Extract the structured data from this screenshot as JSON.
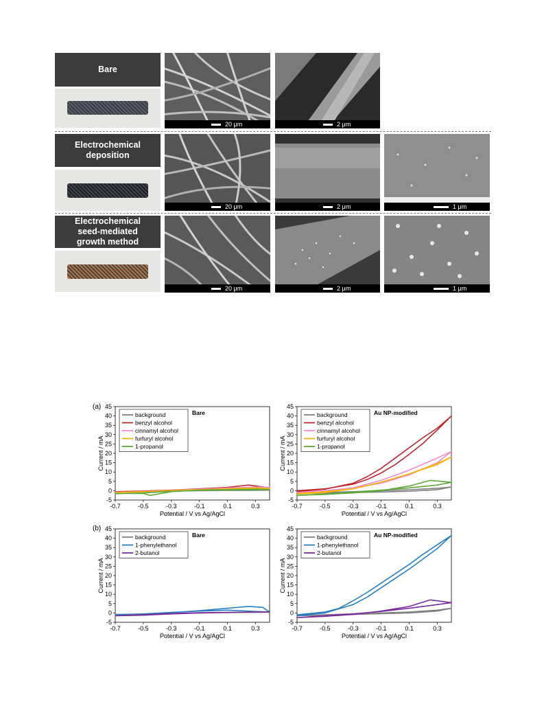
{
  "rows": [
    {
      "label": "Bare",
      "scales": [
        "20 μm",
        "2 μm"
      ]
    },
    {
      "label": "Electrochemical\ndeposition",
      "scales": [
        "20 μm",
        "2 μm",
        "1 μm"
      ]
    },
    {
      "label": "Electrochemical\nseed-mediated\ngrowth method",
      "scales": [
        "20 μm",
        "2 μm",
        "1 μm"
      ]
    }
  ],
  "panel_tags": {
    "a": "(a)",
    "b": "(b)"
  },
  "chart_data": [
    {
      "type": "line",
      "id": "a-bare",
      "title": "Bare",
      "xlabel": "Potential / V vs Ag/AgCl",
      "ylabel": "Current / mA",
      "xlim": [
        -0.7,
        0.4
      ],
      "ylim": [
        -5,
        45
      ],
      "xticks": [
        -0.7,
        -0.5,
        -0.3,
        -0.1,
        0.1,
        0.3
      ],
      "yticks": [
        -5,
        0,
        5,
        10,
        15,
        20,
        25,
        30,
        35,
        40,
        45
      ],
      "legend": "top-left",
      "series": [
        {
          "name": "background",
          "color": "#808080",
          "x": [
            -0.7,
            -0.5,
            -0.3,
            -0.1,
            0.1,
            0.3,
            0.4,
            0.3,
            0.1,
            -0.1,
            -0.3,
            -0.5,
            -0.7
          ],
          "y": [
            -0.5,
            -0.4,
            -0.2,
            0.0,
            0.1,
            0.2,
            0.3,
            0.2,
            0.1,
            0.0,
            -0.2,
            -0.4,
            -0.5
          ]
        },
        {
          "name": "benzyl alcohol",
          "color": "#c0272d",
          "x": [
            -0.7,
            -0.5,
            -0.3,
            -0.1,
            0.1,
            0.25,
            0.4,
            0.3,
            0.1,
            -0.1,
            -0.3,
            -0.5,
            -0.7
          ],
          "y": [
            -0.5,
            -0.2,
            0.3,
            1.0,
            1.8,
            3.0,
            1.5,
            1.2,
            0.8,
            0.5,
            0.2,
            -0.3,
            -0.6
          ]
        },
        {
          "name": "cinnamyl alcohol",
          "color": "#f28ad0",
          "x": [
            -0.7,
            -0.5,
            -0.3,
            -0.1,
            0.1,
            0.3,
            0.4,
            0.3,
            0.1,
            -0.1,
            -0.3,
            -0.5,
            -0.7
          ],
          "y": [
            -0.8,
            -0.5,
            0.2,
            0.8,
            1.4,
            2.0,
            1.8,
            1.5,
            1.0,
            0.6,
            0.2,
            -0.4,
            -0.9
          ]
        },
        {
          "name": "furfuryl alcohol",
          "color": "#f5b400",
          "x": [
            -0.7,
            -0.5,
            -0.3,
            -0.1,
            0.1,
            0.3,
            0.4,
            0.3,
            0.1,
            -0.1,
            -0.3,
            -0.5,
            -0.7
          ],
          "y": [
            -1.0,
            -0.6,
            0.1,
            0.6,
            1.0,
            1.5,
            1.2,
            1.0,
            0.7,
            0.4,
            0.0,
            -0.5,
            -1.0
          ]
        },
        {
          "name": "1-propanol",
          "color": "#5fa83b",
          "x": [
            -0.7,
            -0.5,
            -0.45,
            -0.3,
            -0.1,
            0.1,
            0.3,
            0.4,
            0.3,
            0.1,
            -0.1,
            -0.3,
            -0.5,
            -0.7
          ],
          "y": [
            -1.5,
            -1.5,
            -2.5,
            -0.5,
            0.3,
            0.6,
            0.8,
            0.6,
            0.5,
            0.3,
            0.1,
            -0.3,
            -1.2,
            -1.6
          ]
        }
      ]
    },
    {
      "type": "line",
      "id": "a-au",
      "title": "Au NP-modified",
      "xlabel": "Potential / V vs Ag/AgCl",
      "ylabel": "Current / mA",
      "xlim": [
        -0.7,
        0.4
      ],
      "ylim": [
        -5,
        45
      ],
      "xticks": [
        -0.7,
        -0.5,
        -0.3,
        -0.1,
        0.1,
        0.3
      ],
      "yticks": [
        -5,
        0,
        5,
        10,
        15,
        20,
        25,
        30,
        35,
        40,
        45
      ],
      "legend": "top-left",
      "series": [
        {
          "name": "background",
          "color": "#808080",
          "x": [
            -0.7,
            -0.5,
            -0.3,
            -0.1,
            0.1,
            0.3,
            0.4,
            0.3,
            0.1,
            -0.1,
            -0.3,
            -0.5,
            -0.7
          ],
          "y": [
            -1.5,
            -1.3,
            -1.0,
            -0.7,
            -0.3,
            0.5,
            2.0,
            1.3,
            0.5,
            0.0,
            -0.5,
            -1.0,
            -1.5
          ]
        },
        {
          "name": "benzyl alcohol",
          "color": "#c0272d",
          "x": [
            -0.7,
            -0.5,
            -0.3,
            -0.2,
            -0.1,
            0.0,
            0.1,
            0.2,
            0.3,
            0.4,
            0.3,
            0.2,
            0.1,
            0.0,
            -0.1,
            -0.2,
            -0.3,
            -0.5,
            -0.7
          ],
          "y": [
            0.0,
            1.0,
            3.5,
            6.0,
            9.5,
            14.0,
            19.5,
            25.5,
            32.5,
            40.0,
            33.5,
            28.5,
            23.0,
            17.5,
            12.0,
            7.5,
            4.0,
            0.8,
            -0.5
          ]
        },
        {
          "name": "cinnamyl alcohol",
          "color": "#f28ad0",
          "x": [
            -0.7,
            -0.5,
            -0.3,
            -0.1,
            0.1,
            0.3,
            0.4,
            0.3,
            0.1,
            -0.1,
            -0.3,
            -0.5,
            -0.7
          ],
          "y": [
            -1.0,
            0.0,
            1.5,
            4.0,
            8.5,
            15.0,
            21.0,
            17.5,
            11.0,
            5.5,
            1.5,
            -0.5,
            -1.2
          ]
        },
        {
          "name": "furfuryl alcohol",
          "color": "#f5b400",
          "x": [
            -0.7,
            -0.5,
            -0.3,
            -0.1,
            0.1,
            0.3,
            0.4,
            0.3,
            0.1,
            -0.1,
            -0.3,
            -0.5,
            -0.7
          ],
          "y": [
            -1.5,
            -0.5,
            1.0,
            4.5,
            9.0,
            14.5,
            18.0,
            14.0,
            9.0,
            4.5,
            1.0,
            -1.0,
            -1.8
          ]
        },
        {
          "name": "1-propanol",
          "color": "#5fa83b",
          "x": [
            -0.7,
            -0.5,
            -0.3,
            -0.1,
            0.1,
            0.25,
            0.4,
            0.3,
            0.1,
            -0.1,
            -0.3,
            -0.5,
            -0.7
          ],
          "y": [
            -2.5,
            -2.0,
            -1.2,
            0.0,
            2.5,
            5.5,
            4.5,
            3.0,
            1.5,
            0.3,
            -0.8,
            -1.8,
            -2.5
          ]
        }
      ]
    },
    {
      "type": "line",
      "id": "b-bare",
      "title": "Bare",
      "xlabel": "Potential / V vs Ag/AgCl",
      "ylabel": "Current / mA",
      "xlim": [
        -0.7,
        0.4
      ],
      "ylim": [
        -5,
        45
      ],
      "xticks": [
        -0.7,
        -0.5,
        -0.3,
        -0.1,
        0.1,
        0.3
      ],
      "yticks": [
        -5,
        0,
        5,
        10,
        15,
        20,
        25,
        30,
        35,
        40,
        45
      ],
      "legend": "top-left",
      "series": [
        {
          "name": "background",
          "color": "#808080",
          "x": [
            -0.7,
            -0.5,
            -0.3,
            -0.1,
            0.1,
            0.3,
            0.4,
            0.3,
            0.1,
            -0.1,
            -0.3,
            -0.5,
            -0.7
          ],
          "y": [
            -0.8,
            -0.6,
            -0.3,
            0.0,
            0.2,
            0.3,
            0.4,
            0.3,
            0.2,
            0.0,
            -0.3,
            -0.6,
            -0.8
          ]
        },
        {
          "name": "1-phenylethanol",
          "color": "#2a7fc1",
          "x": [
            -0.7,
            -0.5,
            -0.3,
            -0.1,
            0.1,
            0.25,
            0.35,
            0.4,
            0.3,
            0.1,
            -0.1,
            -0.3,
            -0.5,
            -0.7
          ],
          "y": [
            -1.0,
            -0.6,
            0.2,
            1.2,
            2.5,
            3.5,
            3.0,
            0.5,
            0.8,
            1.5,
            1.0,
            0.3,
            -0.5,
            -1.0
          ]
        },
        {
          "name": "2-butanol",
          "color": "#7a2c9e",
          "x": [
            -0.7,
            -0.5,
            -0.3,
            -0.1,
            0.1,
            0.3,
            0.4,
            0.3,
            0.1,
            -0.1,
            -0.3,
            -0.5,
            -0.7
          ],
          "y": [
            -1.5,
            -1.2,
            -0.5,
            0.0,
            0.3,
            0.5,
            0.6,
            0.5,
            0.3,
            0.1,
            -0.3,
            -1.0,
            -1.5
          ]
        }
      ]
    },
    {
      "type": "line",
      "id": "b-au",
      "title": "Au NP-modified",
      "xlabel": "Potential / V vs Ag/AgCl",
      "ylabel": "Current / mA",
      "xlim": [
        -0.7,
        0.4
      ],
      "ylim": [
        -5,
        45
      ],
      "xticks": [
        -0.7,
        -0.5,
        -0.3,
        -0.1,
        0.1,
        0.3
      ],
      "yticks": [
        -5,
        0,
        5,
        10,
        15,
        20,
        25,
        30,
        35,
        40,
        45
      ],
      "legend": "top-left",
      "series": [
        {
          "name": "background",
          "color": "#808080",
          "x": [
            -0.7,
            -0.5,
            -0.3,
            -0.1,
            0.1,
            0.3,
            0.4,
            0.3,
            0.1,
            -0.1,
            -0.3,
            -0.5,
            -0.7
          ],
          "y": [
            -1.5,
            -1.2,
            -0.8,
            -0.4,
            0.0,
            1.0,
            2.5,
            1.5,
            0.5,
            0.0,
            -0.5,
            -1.0,
            -1.5
          ]
        },
        {
          "name": "1-phenylethanol",
          "color": "#2a7fc1",
          "x": [
            -0.7,
            -0.5,
            -0.4,
            -0.3,
            -0.2,
            -0.1,
            0.0,
            0.1,
            0.2,
            0.3,
            0.4,
            0.3,
            0.2,
            0.1,
            0.0,
            -0.1,
            -0.2,
            -0.3,
            -0.5,
            -0.7
          ],
          "y": [
            -1.0,
            0.5,
            2.5,
            6.5,
            11.0,
            16.0,
            21.0,
            26.0,
            31.5,
            36.5,
            41.5,
            34.5,
            29.0,
            23.5,
            18.5,
            13.5,
            8.5,
            4.5,
            0.0,
            -1.5
          ]
        },
        {
          "name": "2-butanol",
          "color": "#7a2c9e",
          "x": [
            -0.7,
            -0.5,
            -0.3,
            -0.1,
            0.1,
            0.25,
            0.4,
            0.3,
            0.1,
            -0.1,
            -0.3,
            -0.5,
            -0.7
          ],
          "y": [
            -2.5,
            -1.8,
            -0.8,
            1.0,
            3.5,
            7.0,
            5.5,
            4.5,
            2.5,
            0.8,
            -0.5,
            -1.5,
            -2.5
          ]
        }
      ]
    }
  ]
}
